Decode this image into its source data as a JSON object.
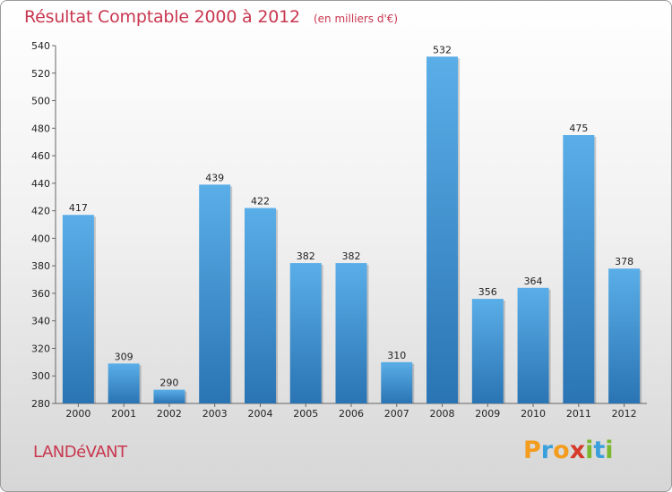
{
  "header": {
    "title": "Résultat Comptable 2000 à 2012",
    "subtitle": "(en milliers d'€)"
  },
  "footer": {
    "place": "LANDéVANT",
    "brand": "Proxiti"
  },
  "colors": {
    "title": "#c8374f",
    "bar_top": "#5aaee8",
    "bar_bottom": "#2a74b3",
    "brand_letters": [
      "#f39c1e",
      "#3aa0dc",
      "#f39c1e",
      "#d53a2b",
      "#7cb82f",
      "#3aa0dc",
      "#7cb82f"
    ]
  },
  "chart_data": {
    "type": "bar",
    "categories": [
      "2000",
      "2001",
      "2002",
      "2003",
      "2004",
      "2005",
      "2006",
      "2007",
      "2008",
      "2009",
      "2010",
      "2011",
      "2012"
    ],
    "values": [
      417,
      309,
      290,
      439,
      422,
      382,
      382,
      310,
      532,
      356,
      364,
      475,
      378
    ],
    "title": "Résultat Comptable 2000 à 2012",
    "ylim": [
      280,
      540
    ],
    "yticks": [
      280,
      300,
      320,
      340,
      360,
      380,
      400,
      420,
      440,
      460,
      480,
      500,
      520,
      540
    ],
    "grid": false,
    "legend": "none"
  }
}
